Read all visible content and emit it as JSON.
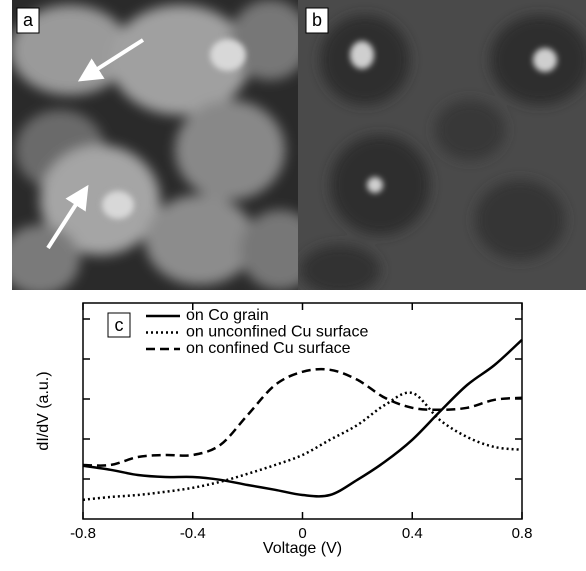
{
  "image_panels": [
    "a",
    "b"
  ],
  "chart_data": {
    "type": "line",
    "panel_label": "c",
    "xlabel": "Voltage (V)",
    "ylabel": "dI/dV (a.u.)",
    "x": [
      -0.8,
      -0.7,
      -0.6,
      -0.5,
      -0.4,
      -0.3,
      -0.2,
      -0.1,
      0,
      0.1,
      0.2,
      0.3,
      0.4,
      0.5,
      0.6,
      0.7,
      0.8
    ],
    "xlim": [
      -0.8,
      0.8
    ],
    "xticks": [
      -0.8,
      -0.4,
      0,
      0.4,
      0.8
    ],
    "ylim": [
      0,
      5.4
    ],
    "yticks": [
      1,
      2,
      3,
      4,
      5
    ],
    "series": [
      {
        "name": "on Co grain",
        "color": "#000000",
        "dash": "solid",
        "values": [
          1.33,
          1.23,
          1.1,
          1.05,
          1.05,
          0.98,
          0.85,
          0.73,
          0.6,
          0.6,
          0.98,
          1.43,
          1.98,
          2.68,
          3.35,
          3.85,
          4.48
        ]
      },
      {
        "name": "on unconfined Cu surface",
        "color": "#000000",
        "dash": "dotted",
        "values": [
          0.48,
          0.55,
          0.6,
          0.68,
          0.78,
          0.93,
          1.13,
          1.35,
          1.6,
          1.98,
          2.35,
          2.85,
          3.15,
          2.48,
          2.05,
          1.8,
          1.73
        ]
      },
      {
        "name": "on confined Cu surface",
        "color": "#000000",
        "dash": "dashed",
        "values": [
          1.35,
          1.35,
          1.55,
          1.6,
          1.6,
          1.85,
          2.6,
          3.35,
          3.68,
          3.73,
          3.48,
          3.03,
          2.78,
          2.73,
          2.78,
          2.98,
          3.03
        ]
      }
    ]
  }
}
